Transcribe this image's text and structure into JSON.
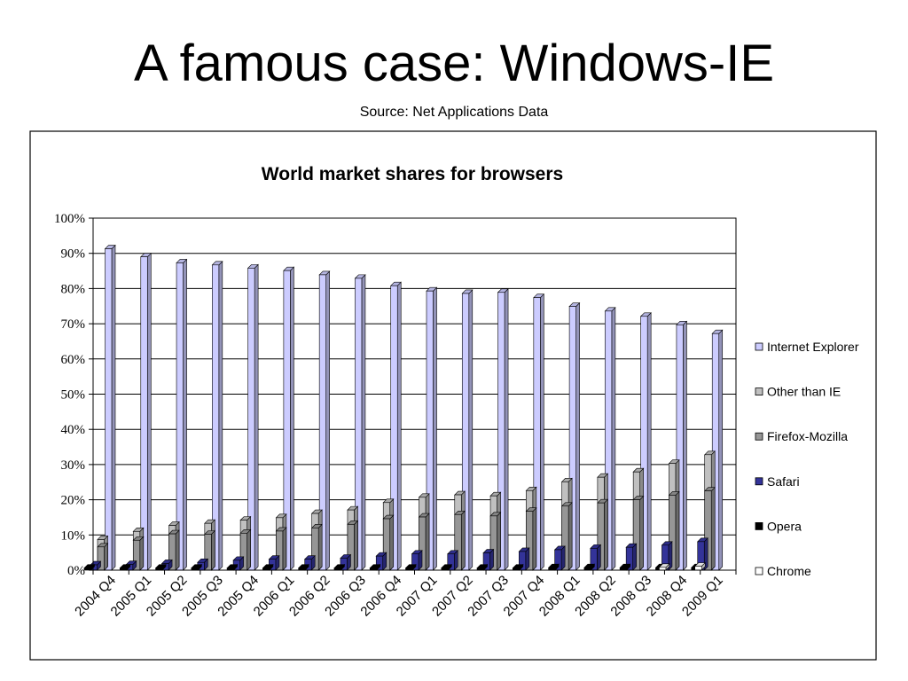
{
  "slide": {
    "title": "A famous case: Windows-IE",
    "subtitle": "Source: Net Applications Data"
  },
  "chart_data": {
    "type": "bar",
    "title": "World market shares for browsers",
    "categories": [
      "2004 Q4",
      "2005 Q1",
      "2005 Q2",
      "2005 Q3",
      "2005 Q4",
      "2006 Q1",
      "2006 Q2",
      "2006 Q3",
      "2006 Q4",
      "2007 Q1",
      "2007 Q2",
      "2007 Q3",
      "2007 Q4",
      "2008 Q1",
      "2008 Q2",
      "2008 Q3",
      "2008 Q4",
      "2009 Q1"
    ],
    "ylim": [
      0,
      100
    ],
    "yticks": [
      "0%",
      "10%",
      "20%",
      "30%",
      "40%",
      "50%",
      "60%",
      "70%",
      "80%",
      "90%",
      "100%"
    ],
    "grid": true,
    "legend_position": "right",
    "series": [
      {
        "name": "Internet Explorer",
        "color": "#ccccff",
        "values": [
          91.3,
          89.0,
          87.3,
          86.7,
          85.8,
          85.1,
          83.9,
          82.9,
          80.8,
          79.3,
          78.6,
          78.9,
          77.4,
          74.9,
          73.6,
          72.1,
          69.7,
          67.2
        ]
      },
      {
        "name": "Other than IE",
        "color": "#c0c0c0",
        "values": [
          8.7,
          11.0,
          12.7,
          13.3,
          14.2,
          14.9,
          16.1,
          17.1,
          19.2,
          20.7,
          21.4,
          21.1,
          22.6,
          25.1,
          26.4,
          27.9,
          30.3,
          32.8
        ]
      },
      {
        "name": "Firefox-Mozilla",
        "color": "#969696",
        "values": [
          6.6,
          8.5,
          10.3,
          10.2,
          10.5,
          11.1,
          12.0,
          13.0,
          14.6,
          15.1,
          15.8,
          15.4,
          16.7,
          18.2,
          19.1,
          20.0,
          21.3,
          22.5
        ]
      },
      {
        "name": "Safari",
        "color": "#333399",
        "values": [
          1.5,
          1.6,
          1.9,
          2.2,
          2.8,
          3.1,
          3.1,
          3.4,
          4.0,
          4.6,
          4.6,
          4.9,
          5.3,
          5.8,
          6.2,
          6.5,
          7.1,
          8.1
        ]
      },
      {
        "name": "Opera",
        "color": "#000000",
        "values": [
          0.6,
          0.6,
          0.6,
          0.6,
          0.6,
          0.6,
          0.6,
          0.6,
          0.6,
          0.6,
          0.6,
          0.6,
          0.6,
          0.7,
          0.7,
          0.7,
          0.7,
          0.7
        ]
      },
      {
        "name": "Chrome",
        "color": "#ffffff",
        "values": [
          0,
          0,
          0,
          0,
          0,
          0,
          0,
          0,
          0,
          0,
          0,
          0,
          0,
          0,
          0,
          0,
          0.8,
          1.1
        ]
      }
    ]
  }
}
